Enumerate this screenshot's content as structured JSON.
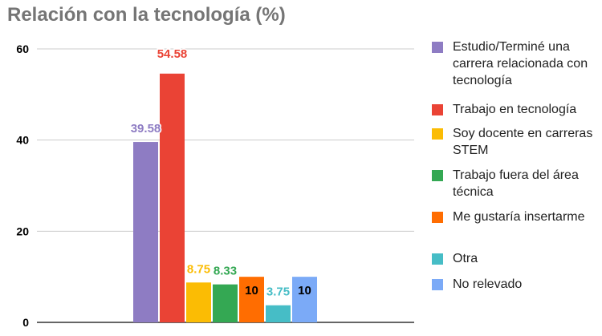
{
  "chart_data": {
    "type": "bar",
    "title": "Relación con la tecnología (%)",
    "xlabel": "",
    "ylabel": "",
    "ylim": [
      0,
      60
    ],
    "yticks": [
      "0",
      "20",
      "40",
      "60"
    ],
    "grid": true,
    "legend_position": "right",
    "series": [
      {
        "name": "Estudio/Terminé una carrera relacionada con tecnología",
        "value": 39.58,
        "label": "39.58",
        "color": "#8e7cc3"
      },
      {
        "name": "Trabajo en tecnología",
        "value": 54.58,
        "label": "54.58",
        "color": "#ea4335"
      },
      {
        "name": "Soy docente en carreras STEM",
        "value": 8.75,
        "label": "8.75",
        "color": "#fbbc04"
      },
      {
        "name": "Trabajo fuera del área técnica",
        "value": 8.33,
        "label": "8.33",
        "color": "#34a853"
      },
      {
        "name": "Me gustaría insertarme",
        "value": 10,
        "label": "10",
        "color": "#ff6d01"
      },
      {
        "name": "Otra",
        "value": 3.75,
        "label": "3.75",
        "color": "#46bdc6"
      },
      {
        "name": "No relevado",
        "value": 10,
        "label": "10",
        "color": "#7baaf7"
      }
    ]
  }
}
